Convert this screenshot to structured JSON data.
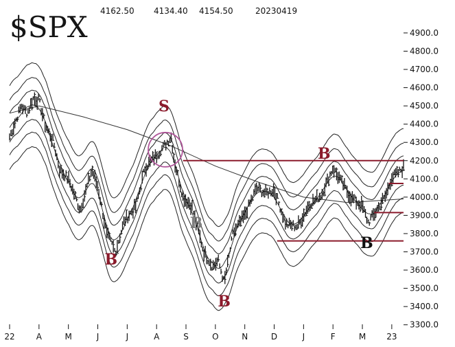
{
  "chart_data": {
    "type": "bar",
    "title": "$SPX",
    "ohlc_header": [
      "4162.50",
      "4134.40",
      "4154.50",
      "20230419"
    ],
    "x_tick_labels": [
      "22",
      "A",
      "M",
      "J",
      "J",
      "A",
      "S",
      "O",
      "N",
      "D",
      "J",
      "F",
      "M",
      "23"
    ],
    "y_tick_labels": [
      "4900.0",
      "4800.0",
      "4700.0",
      "4600.0",
      "4500.0",
      "4400.0",
      "4300.0",
      "4200.0",
      "4100.0",
      "4000.0",
      "3900.0",
      "3800.0",
      "3700.0",
      "3600.0",
      "3500.0",
      "3400.0",
      "3300.0"
    ],
    "ylim": [
      3280,
      4960
    ],
    "x_range_months": [
      0,
      13.4
    ],
    "price_anchors": [
      {
        "x": 0.0,
        "y": 4330
      },
      {
        "x": 0.4,
        "y": 4500
      },
      {
        "x": 0.6,
        "y": 4460
      },
      {
        "x": 0.8,
        "y": 4540
      },
      {
        "x": 1.0,
        "y": 4530
      },
      {
        "x": 1.2,
        "y": 4400
      },
      {
        "x": 1.5,
        "y": 4300
      },
      {
        "x": 1.7,
        "y": 4150
      },
      {
        "x": 2.0,
        "y": 4100
      },
      {
        "x": 2.4,
        "y": 3930
      },
      {
        "x": 2.8,
        "y": 4150
      },
      {
        "x": 3.0,
        "y": 4060
      },
      {
        "x": 3.3,
        "y": 3800
      },
      {
        "x": 3.6,
        "y": 3700
      },
      {
        "x": 3.9,
        "y": 3870
      },
      {
        "x": 4.3,
        "y": 3950
      },
      {
        "x": 4.6,
        "y": 4160
      },
      {
        "x": 5.0,
        "y": 4230
      },
      {
        "x": 5.5,
        "y": 4330
      },
      {
        "x": 5.6,
        "y": 4200
      },
      {
        "x": 5.9,
        "y": 4000
      },
      {
        "x": 6.2,
        "y": 3950
      },
      {
        "x": 6.6,
        "y": 3700
      },
      {
        "x": 6.9,
        "y": 3620
      },
      {
        "x": 7.1,
        "y": 3650
      },
      {
        "x": 7.3,
        "y": 3530
      },
      {
        "x": 7.6,
        "y": 3800
      },
      {
        "x": 8.0,
        "y": 3900
      },
      {
        "x": 8.4,
        "y": 4050
      },
      {
        "x": 8.7,
        "y": 4020
      },
      {
        "x": 9.0,
        "y": 4040
      },
      {
        "x": 9.4,
        "y": 3850
      },
      {
        "x": 9.8,
        "y": 3840
      },
      {
        "x": 10.2,
        "y": 3960
      },
      {
        "x": 10.6,
        "y": 4010
      },
      {
        "x": 11.0,
        "y": 4160
      },
      {
        "x": 11.3,
        "y": 4080
      },
      {
        "x": 11.6,
        "y": 4000
      },
      {
        "x": 12.0,
        "y": 3950
      },
      {
        "x": 12.2,
        "y": 3860
      },
      {
        "x": 12.5,
        "y": 3930
      },
      {
        "x": 12.8,
        "y": 4010
      },
      {
        "x": 13.0,
        "y": 4110
      },
      {
        "x": 13.2,
        "y": 4130
      },
      {
        "x": 13.4,
        "y": 4160
      }
    ],
    "moving_average_200d": [
      {
        "x": 0.0,
        "y": 4460
      },
      {
        "x": 1.0,
        "y": 4500
      },
      {
        "x": 2.5,
        "y": 4440
      },
      {
        "x": 4.0,
        "y": 4370
      },
      {
        "x": 5.5,
        "y": 4280
      },
      {
        "x": 7.0,
        "y": 4170
      },
      {
        "x": 8.5,
        "y": 4080
      },
      {
        "x": 10.0,
        "y": 4000
      },
      {
        "x": 11.5,
        "y": 3970
      },
      {
        "x": 13.4,
        "y": 3990
      }
    ],
    "horizontal_lines": [
      {
        "from_x": 5.9,
        "to_x": 13.4,
        "y": 4200
      },
      {
        "from_x": 9.1,
        "to_x": 13.4,
        "y": 3760
      },
      {
        "from_x": 12.9,
        "to_x": 13.4,
        "y": 4075
      },
      {
        "from_x": 12.4,
        "to_x": 13.4,
        "y": 3915
      }
    ],
    "annotations": [
      {
        "text": "S",
        "x": 5.25,
        "y": 4470,
        "color": "#8b1a2b"
      },
      {
        "text": "B",
        "x": 3.45,
        "y": 3630,
        "color": "#8b1a2b"
      },
      {
        "text": "B",
        "x": 6.35,
        "y": 3830,
        "color": "#7f7f7f"
      },
      {
        "text": "B",
        "x": 7.3,
        "y": 3400,
        "color": "#8b1a2b"
      },
      {
        "text": "B",
        "x": 10.7,
        "y": 4210,
        "color": "#8b1a2b"
      },
      {
        "text": "B",
        "x": 12.15,
        "y": 3720,
        "color": "#111111"
      }
    ],
    "circle_marker": {
      "x": 5.3,
      "y": 4260,
      "color": "#b0569a"
    },
    "colors": {
      "price": "#111111",
      "bands": "#222222",
      "moving_average": "#333333",
      "lines": "#8b1a2b"
    }
  }
}
